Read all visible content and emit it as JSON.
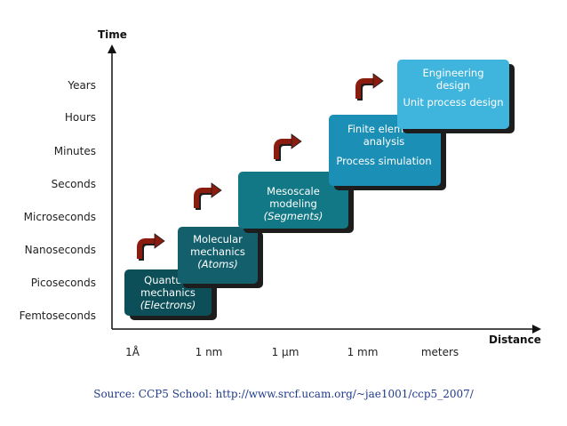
{
  "axes": {
    "y_title": "Time",
    "x_title": "Distance",
    "y_labels": [
      "Years",
      "Hours",
      "Minutes",
      "Seconds",
      "Microseconds",
      "Nanoseconds",
      "Picoseconds",
      "Femtoseconds"
    ],
    "x_labels": [
      "1Å",
      "1 nm",
      "1 μm",
      "1 mm",
      "meters"
    ]
  },
  "boxes": [
    {
      "lines": [
        "Quantum",
        "mechanics"
      ],
      "italic": "(Electrons)",
      "color": "#0d4f58"
    },
    {
      "lines": [
        "Molecular",
        "mechanics"
      ],
      "italic": "(Atoms)",
      "color": "#13606c"
    },
    {
      "lines": [
        "Mesoscale",
        "modeling"
      ],
      "italic": "(Segments)",
      "color": "#137886"
    },
    {
      "lines": [
        "Finite element",
        "analysis"
      ],
      "extra": "Process simulation",
      "color": "#1b8fb5"
    },
    {
      "lines": [
        "Engineering",
        "design"
      ],
      "extra": "Unit process design",
      "color": "#3fb4dc"
    }
  ],
  "arrow_color": "#8b1c10",
  "source": "Source: CCP5 School: http://www.srcf.ucam.org/~jae1001/ccp5_2007/"
}
